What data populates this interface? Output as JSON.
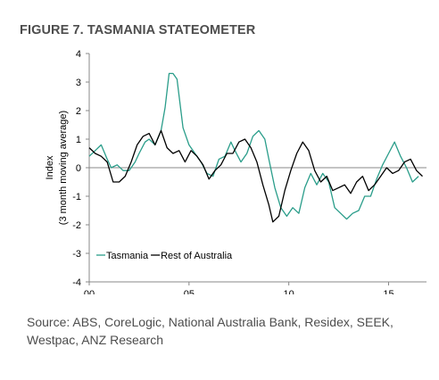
{
  "figure_title": "FIGURE 7. TASMANIA STATEOMETER",
  "source_note": "Source: ABS, CoreLogic, National Australia Bank, Residex, SEEK, Westpac, ANZ Research",
  "chart_data": {
    "type": "line",
    "title": "",
    "ylabel_lines": [
      "Index",
      "(3 month moving average)"
    ],
    "xlabel": "",
    "x_ticks": [
      {
        "value": 2000,
        "label": "00"
      },
      {
        "value": 2005,
        "label": "05"
      },
      {
        "value": 2010,
        "label": "10"
      },
      {
        "value": 2015,
        "label": "15"
      }
    ],
    "y_ticks": [
      4,
      3,
      2,
      1,
      0,
      -1,
      -2,
      -3,
      -4
    ],
    "xlim": [
      2000,
      2016.9
    ],
    "ylim": [
      -4,
      4
    ],
    "grid": false,
    "zero_line": true,
    "legend_position": "bottom-left",
    "series": [
      {
        "name": "Tasmania",
        "color": "#2a9d8a",
        "x": [
          2000.0,
          2000.3,
          2000.6,
          2000.9,
          2001.1,
          2001.4,
          2001.7,
          2002.0,
          2002.3,
          2002.5,
          2002.8,
          2003.0,
          2003.3,
          2003.6,
          2003.8,
          2004.0,
          2004.2,
          2004.4,
          2004.7,
          2005.0,
          2005.3,
          2005.6,
          2005.9,
          2006.2,
          2006.5,
          2006.8,
          2007.1,
          2007.3,
          2007.6,
          2007.9,
          2008.2,
          2008.5,
          2008.8,
          2009.0,
          2009.3,
          2009.6,
          2009.9,
          2010.2,
          2010.5,
          2010.8,
          2011.1,
          2011.4,
          2011.7,
          2012.0,
          2012.3,
          2012.6,
          2012.9,
          2013.2,
          2013.5,
          2013.8,
          2014.1,
          2014.4,
          2014.7,
          2015.0,
          2015.3,
          2015.6,
          2015.9,
          2016.2,
          2016.5
        ],
        "y": [
          0.4,
          0.6,
          0.8,
          0.3,
          0.0,
          0.1,
          -0.1,
          -0.1,
          0.2,
          0.5,
          0.9,
          1.0,
          0.8,
          1.3,
          2.1,
          3.3,
          3.3,
          3.1,
          1.4,
          0.8,
          0.5,
          0.2,
          -0.2,
          -0.3,
          0.3,
          0.4,
          0.9,
          0.6,
          0.2,
          0.5,
          1.1,
          1.3,
          1.0,
          0.3,
          -0.7,
          -1.4,
          -1.7,
          -1.4,
          -1.6,
          -0.7,
          -0.2,
          -0.6,
          -0.2,
          -0.5,
          -1.4,
          -1.6,
          -1.8,
          -1.6,
          -1.5,
          -1.0,
          -1.0,
          -0.4,
          0.1,
          0.5,
          0.9,
          0.4,
          0.0,
          -0.5,
          -0.3
        ]
      },
      {
        "name": "Rest of Australia",
        "color": "#000000",
        "x": [
          2000.0,
          2000.3,
          2000.6,
          2000.9,
          2001.2,
          2001.5,
          2001.8,
          2002.1,
          2002.4,
          2002.7,
          2003.0,
          2003.3,
          2003.6,
          2003.9,
          2004.2,
          2004.5,
          2004.8,
          2005.1,
          2005.4,
          2005.7,
          2006.0,
          2006.3,
          2006.6,
          2006.9,
          2007.2,
          2007.5,
          2007.8,
          2008.1,
          2008.4,
          2008.7,
          2009.0,
          2009.2,
          2009.5,
          2009.8,
          2010.1,
          2010.4,
          2010.7,
          2011.0,
          2011.3,
          2011.6,
          2011.9,
          2012.2,
          2012.5,
          2012.8,
          2013.1,
          2013.4,
          2013.7,
          2014.0,
          2014.3,
          2014.6,
          2014.9,
          2015.2,
          2015.5,
          2015.8,
          2016.1,
          2016.4,
          2016.7
        ],
        "y": [
          0.7,
          0.5,
          0.4,
          0.2,
          -0.5,
          -0.5,
          -0.3,
          0.2,
          0.8,
          1.1,
          1.2,
          0.8,
          1.3,
          0.7,
          0.5,
          0.6,
          0.2,
          0.6,
          0.4,
          0.1,
          -0.4,
          -0.1,
          0.1,
          0.5,
          0.5,
          0.9,
          1.0,
          0.7,
          0.2,
          -0.6,
          -1.3,
          -1.9,
          -1.7,
          -0.8,
          -0.1,
          0.5,
          0.9,
          0.6,
          -0.1,
          -0.5,
          -0.3,
          -0.8,
          -0.7,
          -0.6,
          -0.9,
          -0.5,
          -0.3,
          -0.8,
          -0.6,
          -0.3,
          0.0,
          -0.2,
          -0.1,
          0.2,
          0.3,
          -0.1,
          -0.3
        ]
      }
    ]
  }
}
